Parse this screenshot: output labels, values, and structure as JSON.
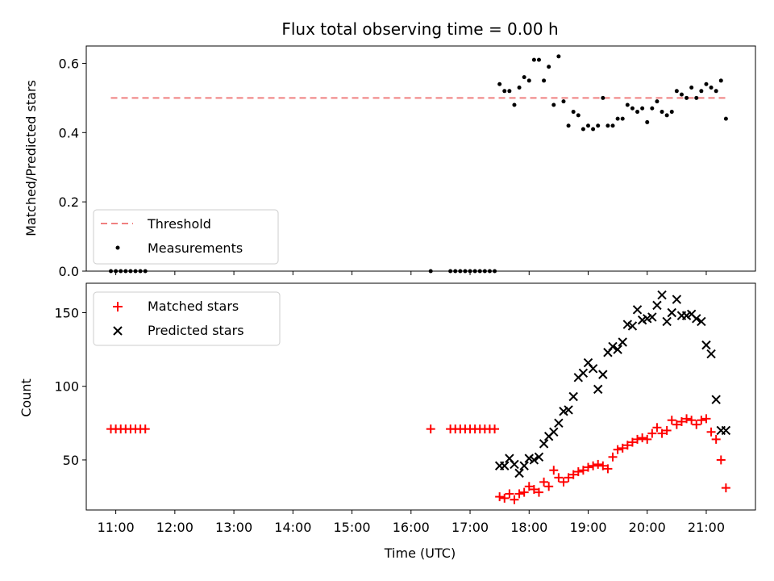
{
  "chart_data": [
    {
      "panel": "top",
      "type": "scatter",
      "title": "Flux total observing time = 0.00 h",
      "xlabel": "",
      "ylabel": "Matched/Predicted stars",
      "xlim": [
        "10:30",
        "21:50"
      ],
      "ylim": [
        0,
        0.65
      ],
      "yticks": [
        0.0,
        0.2,
        0.4,
        0.6
      ],
      "ytick_labels": [
        "0.0",
        "0.2",
        "0.4",
        "0.6"
      ],
      "legend_position": "lower-left",
      "threshold": {
        "name": "Threshold",
        "color": "#f08080",
        "style": "dashed",
        "x": [
          "10:55",
          "21:20"
        ],
        "y": 0.5
      },
      "series": [
        {
          "name": "Measurements",
          "color": "#000000",
          "marker": "dot",
          "x": [
            "10:55",
            "11:00",
            "11:05",
            "11:10",
            "11:15",
            "11:20",
            "11:25",
            "11:30",
            "16:20",
            "16:40",
            "16:45",
            "16:50",
            "16:55",
            "17:00",
            "17:05",
            "17:10",
            "17:15",
            "17:20",
            "17:25",
            "17:30",
            "17:35",
            "17:40",
            "17:45",
            "17:50",
            "17:55",
            "18:00",
            "18:05",
            "18:10",
            "18:15",
            "18:20",
            "18:25",
            "18:30",
            "18:35",
            "18:40",
            "18:45",
            "18:50",
            "18:55",
            "19:00",
            "19:05",
            "19:10",
            "19:15",
            "19:20",
            "19:25",
            "19:30",
            "19:35",
            "19:40",
            "19:45",
            "19:50",
            "19:55",
            "20:00",
            "20:05",
            "20:10",
            "20:15",
            "20:20",
            "20:25",
            "20:30",
            "20:35",
            "20:40",
            "20:45",
            "20:50",
            "20:55",
            "21:00",
            "21:05",
            "21:10",
            "21:15",
            "21:20"
          ],
          "y": [
            0.0,
            0.0,
            0.0,
            0.0,
            0.0,
            0.0,
            0.0,
            0.0,
            0.0,
            0.0,
            0.0,
            0.0,
            0.0,
            0.0,
            0.0,
            0.0,
            0.0,
            0.0,
            0.0,
            0.54,
            0.52,
            0.52,
            0.48,
            0.53,
            0.56,
            0.55,
            0.61,
            0.61,
            0.55,
            0.59,
            0.48,
            0.62,
            0.49,
            0.42,
            0.46,
            0.45,
            0.41,
            0.42,
            0.41,
            0.42,
            0.5,
            0.42,
            0.42,
            0.44,
            0.44,
            0.48,
            0.47,
            0.46,
            0.47,
            0.43,
            0.47,
            0.49,
            0.46,
            0.45,
            0.46,
            0.52,
            0.51,
            0.5,
            0.53,
            0.5,
            0.52,
            0.54,
            0.53,
            0.52,
            0.55,
            0.44
          ]
        }
      ]
    },
    {
      "panel": "bottom",
      "type": "scatter",
      "title": "",
      "xlabel": "Time (UTC)",
      "ylabel": "Count",
      "xlim": [
        "10:30",
        "21:50"
      ],
      "xticks": [
        "11:00",
        "12:00",
        "13:00",
        "14:00",
        "15:00",
        "16:00",
        "17:00",
        "18:00",
        "19:00",
        "20:00",
        "21:00"
      ],
      "ylim": [
        16,
        170
      ],
      "yticks": [
        50,
        100,
        150
      ],
      "ytick_labels": [
        "50",
        "100",
        "150"
      ],
      "legend_position": "upper-left",
      "series": [
        {
          "name": "Matched stars",
          "color": "#ff0000",
          "marker": "plus",
          "x": [
            "10:55",
            "11:00",
            "11:05",
            "11:10",
            "11:15",
            "11:20",
            "11:25",
            "11:30",
            "16:20",
            "16:40",
            "16:45",
            "16:50",
            "16:55",
            "17:00",
            "17:05",
            "17:10",
            "17:15",
            "17:20",
            "17:25",
            "17:30",
            "17:35",
            "17:40",
            "17:45",
            "17:50",
            "17:55",
            "18:00",
            "18:05",
            "18:10",
            "18:15",
            "18:20",
            "18:25",
            "18:30",
            "18:35",
            "18:40",
            "18:45",
            "18:50",
            "18:55",
            "19:00",
            "19:05",
            "19:10",
            "19:15",
            "19:20",
            "19:25",
            "19:30",
            "19:35",
            "19:40",
            "19:45",
            "19:50",
            "19:55",
            "20:00",
            "20:05",
            "20:10",
            "20:15",
            "20:20",
            "20:25",
            "20:30",
            "20:35",
            "20:40",
            "20:45",
            "20:50",
            "20:55",
            "21:00",
            "21:05",
            "21:10",
            "21:15",
            "21:20"
          ],
          "y": [
            71,
            71,
            71,
            71,
            71,
            71,
            71,
            71,
            71,
            71,
            71,
            71,
            71,
            71,
            71,
            71,
            71,
            71,
            71,
            25,
            24,
            27,
            23,
            27,
            28,
            32,
            30,
            28,
            35,
            32,
            43,
            38,
            35,
            38,
            40,
            42,
            43,
            45,
            46,
            47,
            46,
            44,
            52,
            57,
            58,
            60,
            62,
            64,
            65,
            64,
            68,
            72,
            68,
            70,
            77,
            74,
            76,
            78,
            77,
            74,
            77,
            78,
            69,
            64,
            50,
            31
          ]
        },
        {
          "name": "Predicted stars",
          "color": "#000000",
          "marker": "x",
          "x": [
            "17:30",
            "17:35",
            "17:40",
            "17:45",
            "17:50",
            "17:55",
            "18:00",
            "18:05",
            "18:10",
            "18:15",
            "18:20",
            "18:25",
            "18:30",
            "18:35",
            "18:40",
            "18:45",
            "18:50",
            "18:55",
            "19:00",
            "19:05",
            "19:10",
            "19:15",
            "19:20",
            "19:25",
            "19:30",
            "19:35",
            "19:40",
            "19:45",
            "19:50",
            "19:55",
            "20:00",
            "20:05",
            "20:10",
            "20:15",
            "20:20",
            "20:25",
            "20:30",
            "20:35",
            "20:40",
            "20:45",
            "20:50",
            "20:55",
            "21:00",
            "21:05",
            "21:10",
            "21:15",
            "21:20"
          ],
          "y": [
            46,
            46,
            51,
            47,
            41,
            46,
            51,
            50,
            52,
            61,
            66,
            69,
            75,
            83,
            84,
            93,
            106,
            109,
            116,
            112,
            98,
            108,
            123,
            127,
            125,
            130,
            142,
            141,
            152,
            145,
            146,
            147,
            155,
            162,
            144,
            150,
            159,
            148,
            148,
            149,
            146,
            144,
            128,
            122,
            91,
            70,
            70
          ]
        }
      ]
    }
  ]
}
